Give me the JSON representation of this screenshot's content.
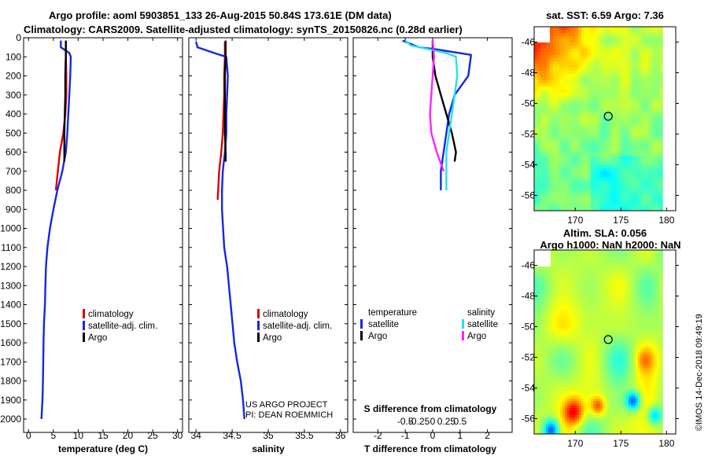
{
  "header": {
    "title_line1": "Argo profile: aoml 5903851_133 26-Aug-2015 50.84S 173.61E (DM data)",
    "title_line2": "Climatology: CARS2009. Satellite-adjusted climatology: synTS_20150826.nc (0.28d earlier)"
  },
  "colors": {
    "climatology": "#dd0000",
    "satellite": "#1428e0",
    "argo": "#000000",
    "sat_salinity": "#22e0f0",
    "argo_salinity": "#ff22ff"
  },
  "depth_axis": {
    "range": [
      0,
      2070
    ],
    "ticks": [
      0,
      100,
      200,
      300,
      400,
      500,
      600,
      700,
      800,
      900,
      1000,
      1100,
      1200,
      1300,
      1400,
      1500,
      1600,
      1700,
      1800,
      1900,
      2000
    ],
    "tick_labels": [
      "0",
      "100",
      "200",
      "300",
      "400",
      "500",
      "600",
      "700",
      "800",
      "900",
      "1000",
      "1100",
      "1200",
      "1300",
      "1400",
      "1500",
      "1600",
      "1700",
      "1800",
      "1900",
      "2000"
    ]
  },
  "chart_data": [
    {
      "type": "line",
      "id": "temperature",
      "xlabel": "temperature (deg C)",
      "xlim": [
        -1,
        31
      ],
      "xticks": [
        0,
        5,
        10,
        15,
        20,
        25,
        30
      ],
      "xtick_labels": [
        "0",
        "5",
        "10",
        "15",
        "20",
        "25",
        "30"
      ],
      "ylim": [
        0,
        2070
      ],
      "legend": [
        "climatology",
        "satellite-adj. clim.",
        "Argo"
      ],
      "series": [
        {
          "name": "climatology",
          "color_key": "climatology",
          "x": [
            7.5,
            7.5,
            7.6,
            7.6,
            7.4,
            7.0,
            6.3,
            5.5
          ],
          "y": [
            20,
            100,
            200,
            300,
            400,
            500,
            600,
            800
          ]
        },
        {
          "name": "satellite-adj. clim.",
          "color_key": "satellite",
          "x": [
            6.5,
            6.5,
            8.2,
            8.5,
            8.4,
            8.2,
            8.0,
            7.8,
            7.5,
            6.8,
            5.8,
            5.0,
            4.3,
            3.8,
            3.5,
            3.3,
            3.1,
            3.0,
            2.9,
            2.8,
            2.6
          ],
          "y": [
            15,
            50,
            80,
            100,
            200,
            300,
            400,
            500,
            600,
            700,
            800,
            900,
            1000,
            1100,
            1200,
            1400,
            1500,
            1600,
            1800,
            1900,
            2000
          ]
        },
        {
          "name": "Argo",
          "color_key": "argo",
          "x": [
            7.5,
            7.5,
            7.4,
            7.4,
            7.3,
            7.2,
            7.2
          ],
          "y": [
            15,
            100,
            200,
            300,
            400,
            500,
            650
          ]
        }
      ]
    },
    {
      "type": "line",
      "id": "salinity",
      "xlabel": "salinity",
      "xlim": [
        33.9,
        36.1
      ],
      "xticks": [
        34,
        34.5,
        35,
        35.5,
        36
      ],
      "xtick_labels": [
        "34",
        "34.5",
        "35",
        "35.5",
        "36"
      ],
      "ylim": [
        0,
        2070
      ],
      "legend": [
        "climatology",
        "satellite-adj. clim.",
        "Argo"
      ],
      "annotations": [
        "US ARGO PROJECT",
        "PI: DEAN ROEMMICH"
      ],
      "series": [
        {
          "name": "climatology",
          "color_key": "climatology",
          "x": [
            34.4,
            34.4,
            34.39,
            34.39,
            34.38,
            34.37,
            34.35,
            34.32,
            34.3
          ],
          "y": [
            20,
            100,
            200,
            300,
            400,
            500,
            600,
            700,
            850
          ]
        },
        {
          "name": "satellite-adj. clim.",
          "color_key": "satellite",
          "x": [
            34.0,
            34.02,
            34.25,
            34.42,
            34.44,
            34.43,
            34.42,
            34.42,
            34.4,
            34.37,
            34.36,
            34.36,
            34.39,
            34.43,
            34.48,
            34.53,
            34.57,
            34.62,
            34.65,
            34.67
          ],
          "y": [
            20,
            50,
            80,
            100,
            200,
            300,
            400,
            500,
            600,
            700,
            800,
            900,
            1100,
            1200,
            1400,
            1600,
            1700,
            1800,
            1900,
            2000
          ]
        },
        {
          "name": "Argo",
          "color_key": "argo",
          "x": [
            34.41,
            34.41,
            34.4,
            34.4,
            34.4,
            34.4,
            34.41,
            34.41
          ],
          "y": [
            15,
            100,
            200,
            300,
            400,
            500,
            600,
            650
          ]
        }
      ]
    },
    {
      "type": "line",
      "id": "differences",
      "xlabel": "T difference from climatology",
      "xlabel2": "S difference from climatology",
      "xlim": [
        -2.9,
        2.9
      ],
      "xticks": [
        -2,
        -1,
        0,
        1,
        2
      ],
      "xtick_labels": [
        "-2",
        "-1",
        "0",
        "1",
        "2"
      ],
      "xticks2": [
        -1,
        -0.5,
        0,
        0.5,
        1
      ],
      "xtick2_labels": [
        "-0.5",
        "-0.25",
        "0",
        "0.25",
        "0.5"
      ],
      "ylim": [
        0,
        2070
      ],
      "legend_temperature": {
        "title": "temperature",
        "items": [
          "satellite",
          "Argo"
        ]
      },
      "legend_salinity": {
        "title": "salinity",
        "items": [
          "satellite",
          "Argo"
        ]
      },
      "series": [
        {
          "name": "temperature satellite",
          "color_key": "satellite",
          "x": [
            -1.1,
            -0.5,
            0.1,
            1.4,
            1.3,
            0.8,
            0.6,
            0.5,
            0.4,
            0.3,
            0.3
          ],
          "y": [
            15,
            50,
            60,
            90,
            200,
            300,
            400,
            500,
            600,
            700,
            800
          ]
        },
        {
          "name": "temperature Argo",
          "color_key": "argo",
          "x": [
            0.0,
            0.0,
            0.1,
            0.3,
            0.5,
            0.7,
            0.85,
            0.8
          ],
          "y": [
            15,
            100,
            200,
            300,
            400,
            500,
            600,
            650
          ]
        },
        {
          "name": "salinity satellite",
          "color_key": "sat_salinity",
          "x": [
            -1.0,
            -0.8,
            0.5,
            0.85,
            0.9,
            0.8,
            0.7,
            0.6,
            0.5,
            0.5
          ],
          "y": [
            15,
            40,
            80,
            100,
            200,
            300,
            400,
            500,
            600,
            800
          ]
        },
        {
          "name": "salinity Argo",
          "color_key": "argo_salinity",
          "x": [
            0.0,
            0.05,
            0.0,
            -0.05,
            -0.1,
            -0.05,
            0.15,
            0.35,
            0.4
          ],
          "y": [
            15,
            100,
            200,
            300,
            400,
            500,
            600,
            680,
            700
          ]
        }
      ]
    },
    {
      "type": "heatmap",
      "id": "sst-map",
      "title": "sat. SST: 6.59 Argo: 7.36",
      "xlim": [
        165.5,
        181
      ],
      "ylim": [
        -57,
        -45
      ],
      "xticks": [
        170,
        175,
        180
      ],
      "xtick_labels": [
        "170",
        "175",
        "180"
      ],
      "yticks": [
        -46,
        -48,
        -50,
        -52,
        -54,
        -56
      ],
      "ytick_labels": [
        "-46",
        "-48",
        "-50",
        "-52",
        "-54",
        "-56"
      ],
      "float_position": [
        173.61,
        -50.84
      ]
    },
    {
      "type": "heatmap",
      "id": "sla-map",
      "title_line1": "Altim. SLA: 0.056",
      "title_line2": "Argo h1000: NaN h2000: NaN",
      "xlim": [
        165.5,
        181
      ],
      "ylim": [
        -57,
        -45
      ],
      "xticks": [
        170,
        175,
        180
      ],
      "xtick_labels": [
        "170",
        "175",
        "180"
      ],
      "yticks": [
        -46,
        -48,
        -50,
        -52,
        -54,
        -56
      ],
      "ytick_labels": [
        "-46",
        "-48",
        "-50",
        "-52",
        "-54",
        "-56"
      ],
      "float_position": [
        173.61,
        -50.84
      ]
    }
  ],
  "footer": {
    "stamp": "©IMOS 14-Dec-2018 09:49:19"
  }
}
